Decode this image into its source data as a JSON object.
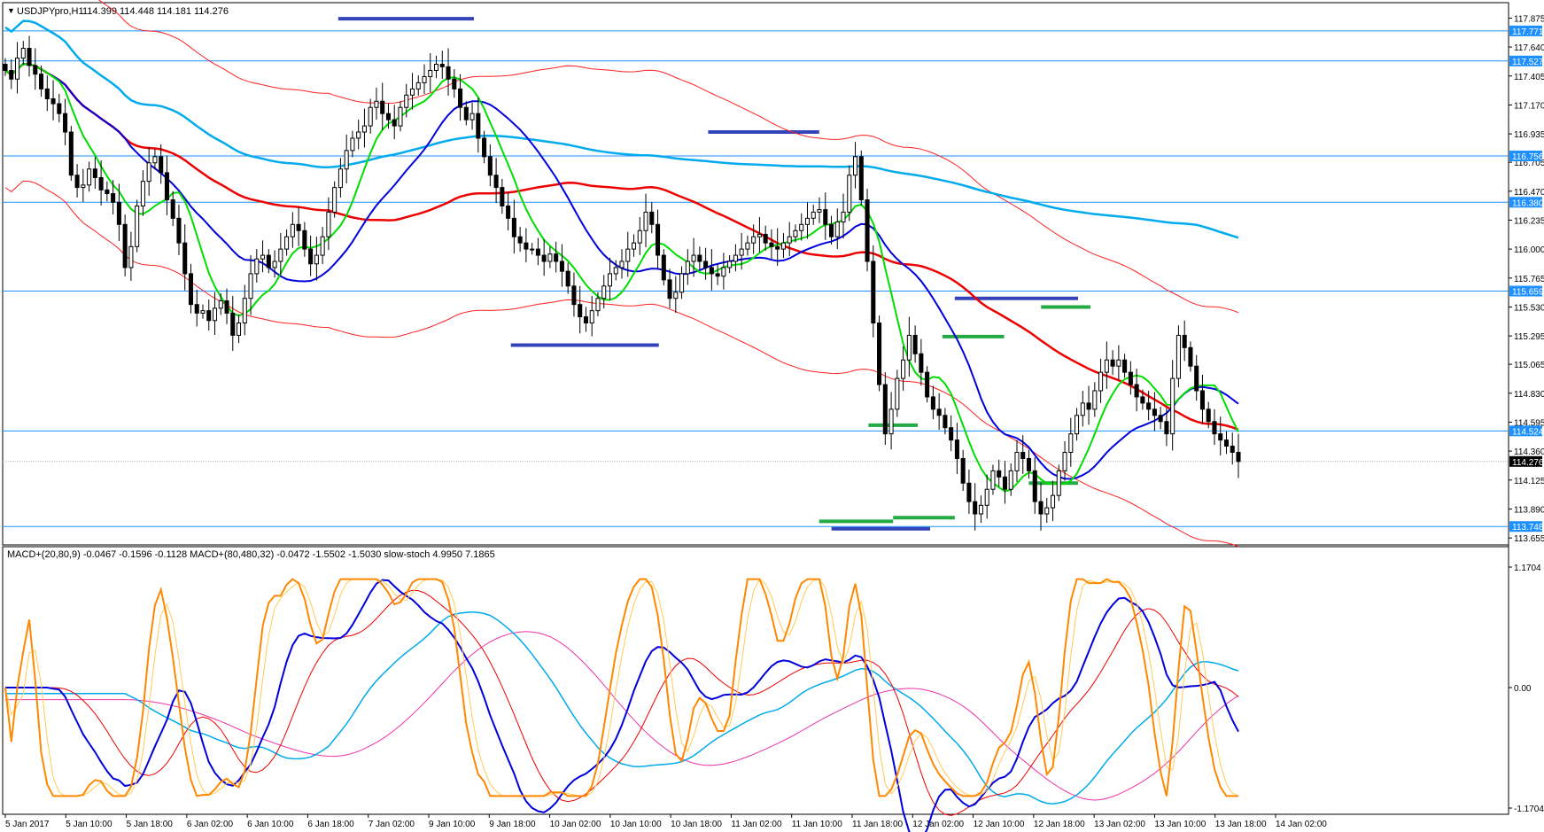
{
  "main_panel": {
    "header": {
      "symbol": "USDJPYpro,H1",
      "ohlc": "114.399 114.448 114.181 114.276"
    },
    "price_axis_ticks": [
      "117.875",
      "117.640",
      "117.405",
      "117.170",
      "116.935",
      "116.705",
      "116.470",
      "116.235",
      "116.000",
      "115.765",
      "115.530",
      "115.295",
      "115.065",
      "114.830",
      "114.595",
      "114.360",
      "114.125",
      "113.890",
      "113.655"
    ],
    "levels": [
      {
        "price": 117.771,
        "label": "117.771"
      },
      {
        "price": 117.527,
        "label": "117.527"
      },
      {
        "price": 116.756,
        "label": "116.756"
      },
      {
        "price": 116.38,
        "label": "116.380"
      },
      {
        "price": 115.659,
        "label": "115.659"
      },
      {
        "price": 114.524,
        "label": "114.524"
      },
      {
        "price": 113.748,
        "label": "113.748"
      }
    ],
    "current_price": {
      "price": 114.276,
      "label": "114.276"
    }
  },
  "indicator_panel": {
    "header": "MACD+(20,80,9) -0.0467 -0.1596 -0.1128  MACD+(80,480,32) -0.0472 -1.5502 -1.5030  slow-stoch 4.9950 7.1865",
    "axis_labels": [
      "1.1704",
      "0.00",
      "-1.1704"
    ]
  },
  "time_axis": [
    "5 Jan 2017",
    "5 Jan 10:00",
    "5 Jan 18:00",
    "6 Jan 02:00",
    "6 Jan 10:00",
    "6 Jan 18:00",
    "7 Jan 02:00",
    "9 Jan 10:00",
    "9 Jan 18:00",
    "10 Jan 02:00",
    "10 Jan 10:00",
    "10 Jan 18:00",
    "11 Jan 02:00",
    "11 Jan 10:00",
    "11 Jan 18:00",
    "12 Jan 02:00",
    "12 Jan 10:00",
    "12 Jan 18:00",
    "13 Jan 02:00",
    "13 Jan 10:00",
    "13 Jan 18:00",
    "14 Jan 02:00"
  ],
  "colors": {
    "up_candle": "#ffffff",
    "down_candle": "#000000",
    "ma_fast": "#00dd00",
    "ma_mid": "#0000dd",
    "ma_slow": "#ee0000",
    "ma_long": "#00aaee",
    "envelope": "#ff2020",
    "level_line": "#1e90ff",
    "resistance_mark": "#3344bb",
    "support_mark": "#22aa44",
    "stoch": "#ff8800",
    "macd_fast": "#0000dd",
    "macd_slow": "#00aaee",
    "signal_pink": "#ee33aa"
  },
  "chart_data": {
    "type": "candlestick",
    "symbol": "USDJPYpro",
    "timeframe": "H1",
    "ylim": [
      113.62,
      117.95
    ],
    "closes": [
      117.45,
      117.38,
      117.55,
      117.63,
      117.49,
      117.42,
      117.3,
      117.22,
      117.18,
      117.1,
      116.95,
      116.6,
      116.5,
      116.52,
      116.65,
      116.58,
      116.48,
      116.45,
      116.38,
      116.2,
      115.85,
      116.02,
      116.35,
      116.55,
      116.7,
      116.75,
      116.62,
      116.4,
      116.25,
      116.05,
      115.8,
      115.55,
      115.48,
      115.5,
      115.42,
      115.52,
      115.58,
      115.48,
      115.3,
      115.4,
      115.6,
      115.8,
      115.92,
      115.95,
      115.85,
      115.9,
      116.0,
      116.1,
      116.2,
      116.15,
      116.0,
      115.88,
      115.95,
      116.1,
      116.3,
      116.5,
      116.65,
      116.8,
      116.9,
      116.95,
      117.0,
      117.15,
      117.2,
      117.1,
      117.05,
      117.0,
      117.15,
      117.25,
      117.3,
      117.35,
      117.4,
      117.45,
      117.5,
      117.48,
      117.38,
      117.3,
      117.15,
      117.05,
      117.1,
      116.9,
      116.75,
      116.6,
      116.5,
      116.35,
      116.25,
      116.1,
      116.05,
      116.0,
      116.0,
      115.95,
      115.9,
      115.96,
      115.9,
      115.82,
      115.7,
      115.55,
      115.45,
      115.4,
      115.5,
      115.6,
      115.7,
      115.8,
      115.85,
      115.9,
      116.0,
      116.05,
      116.15,
      116.3,
      116.2,
      115.95,
      115.75,
      115.6,
      115.65,
      115.8,
      115.9,
      115.95,
      115.9,
      115.85,
      115.8,
      115.78,
      115.85,
      115.9,
      115.95,
      116.0,
      116.05,
      116.1,
      116.12,
      116.05,
      116.02,
      116.0,
      116.05,
      116.1,
      116.15,
      116.2,
      116.25,
      116.3,
      116.32,
      116.2,
      116.1,
      116.22,
      116.3,
      116.6,
      116.75,
      116.4,
      115.9,
      115.4,
      114.9,
      114.5,
      114.7,
      114.95,
      115.1,
      115.3,
      115.15,
      115.0,
      114.8,
      114.7,
      114.65,
      114.55,
      114.45,
      114.3,
      114.1,
      113.95,
      113.85,
      113.92,
      114.05,
      114.2,
      114.15,
      114.05,
      114.2,
      114.35,
      114.3,
      114.2,
      113.95,
      113.85,
      113.9,
      114.0,
      114.2,
      114.35,
      114.5,
      114.65,
      114.75,
      114.7,
      114.85,
      115.0,
      115.1,
      115.05,
      115.1,
      115.0,
      114.9,
      114.8,
      114.75,
      114.7,
      114.65,
      114.6,
      114.5,
      114.95,
      115.3,
      115.2,
      115.05,
      114.85,
      114.7,
      114.6,
      114.5,
      114.45,
      114.4,
      114.35,
      114.276
    ],
    "title": ""
  }
}
